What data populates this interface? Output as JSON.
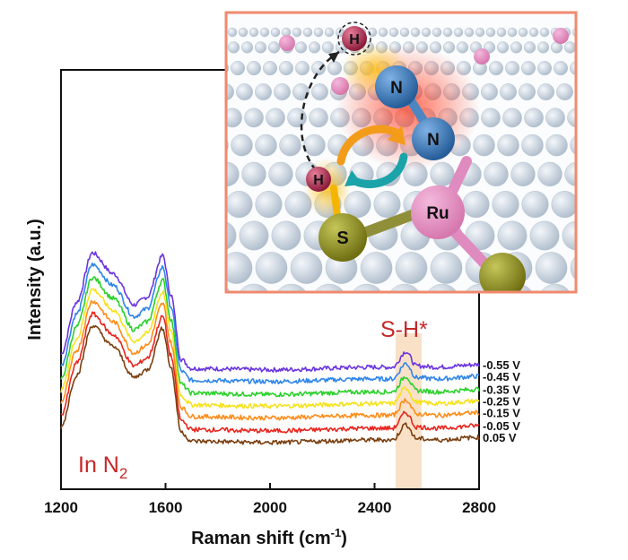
{
  "chart_data": {
    "type": "line",
    "xlabel_main": "Raman shift (cm",
    "xlabel_sup": "-1",
    "xlabel_end": ")",
    "ylabel": "Intensity (a.u.)",
    "xlim": [
      1200,
      2800
    ],
    "xticks": [
      "1200",
      "1600",
      "2000",
      "2400",
      "2800"
    ],
    "annotations": {
      "gas_prefix": "In N",
      "gas_sub": "2",
      "peak_label": "S-H*"
    },
    "highlight_band": [
      2480,
      2580
    ],
    "series": [
      {
        "name": "-0.55 V",
        "color": "#6a35e0",
        "offset": 6.6
      },
      {
        "name": "-0.45 V",
        "color": "#2f86ea",
        "offset": 5.7
      },
      {
        "name": "-0.35 V",
        "color": "#2bd12b",
        "offset": 4.7
      },
      {
        "name": "-0.25 V",
        "color": "#f5e21c",
        "offset": 3.8
      },
      {
        "name": "-0.15 V",
        "color": "#ff8c1a",
        "offset": 2.9
      },
      {
        "name": "-0.05 V",
        "color": "#e8261e",
        "offset": 1.9
      },
      {
        "name": "0.05 V",
        "color": "#7a3f10",
        "offset": 1.0
      }
    ],
    "baseline_profile": {
      "x": [
        1200,
        1260,
        1320,
        1400,
        1480,
        1530,
        1590,
        1620,
        1660,
        1700,
        2000,
        2400,
        2470,
        2520,
        2560,
        2640,
        2800
      ],
      "y": [
        2.0,
        6.0,
        9.8,
        8.2,
        5.8,
        6.4,
        9.6,
        6.6,
        1.6,
        0.9,
        0.8,
        1.0,
        1.0,
        2.2,
        1.1,
        1.0,
        1.2
      ]
    }
  },
  "inset": {
    "atoms": {
      "h": "H",
      "n": "N",
      "s": "S",
      "ru": "Ru"
    }
  }
}
